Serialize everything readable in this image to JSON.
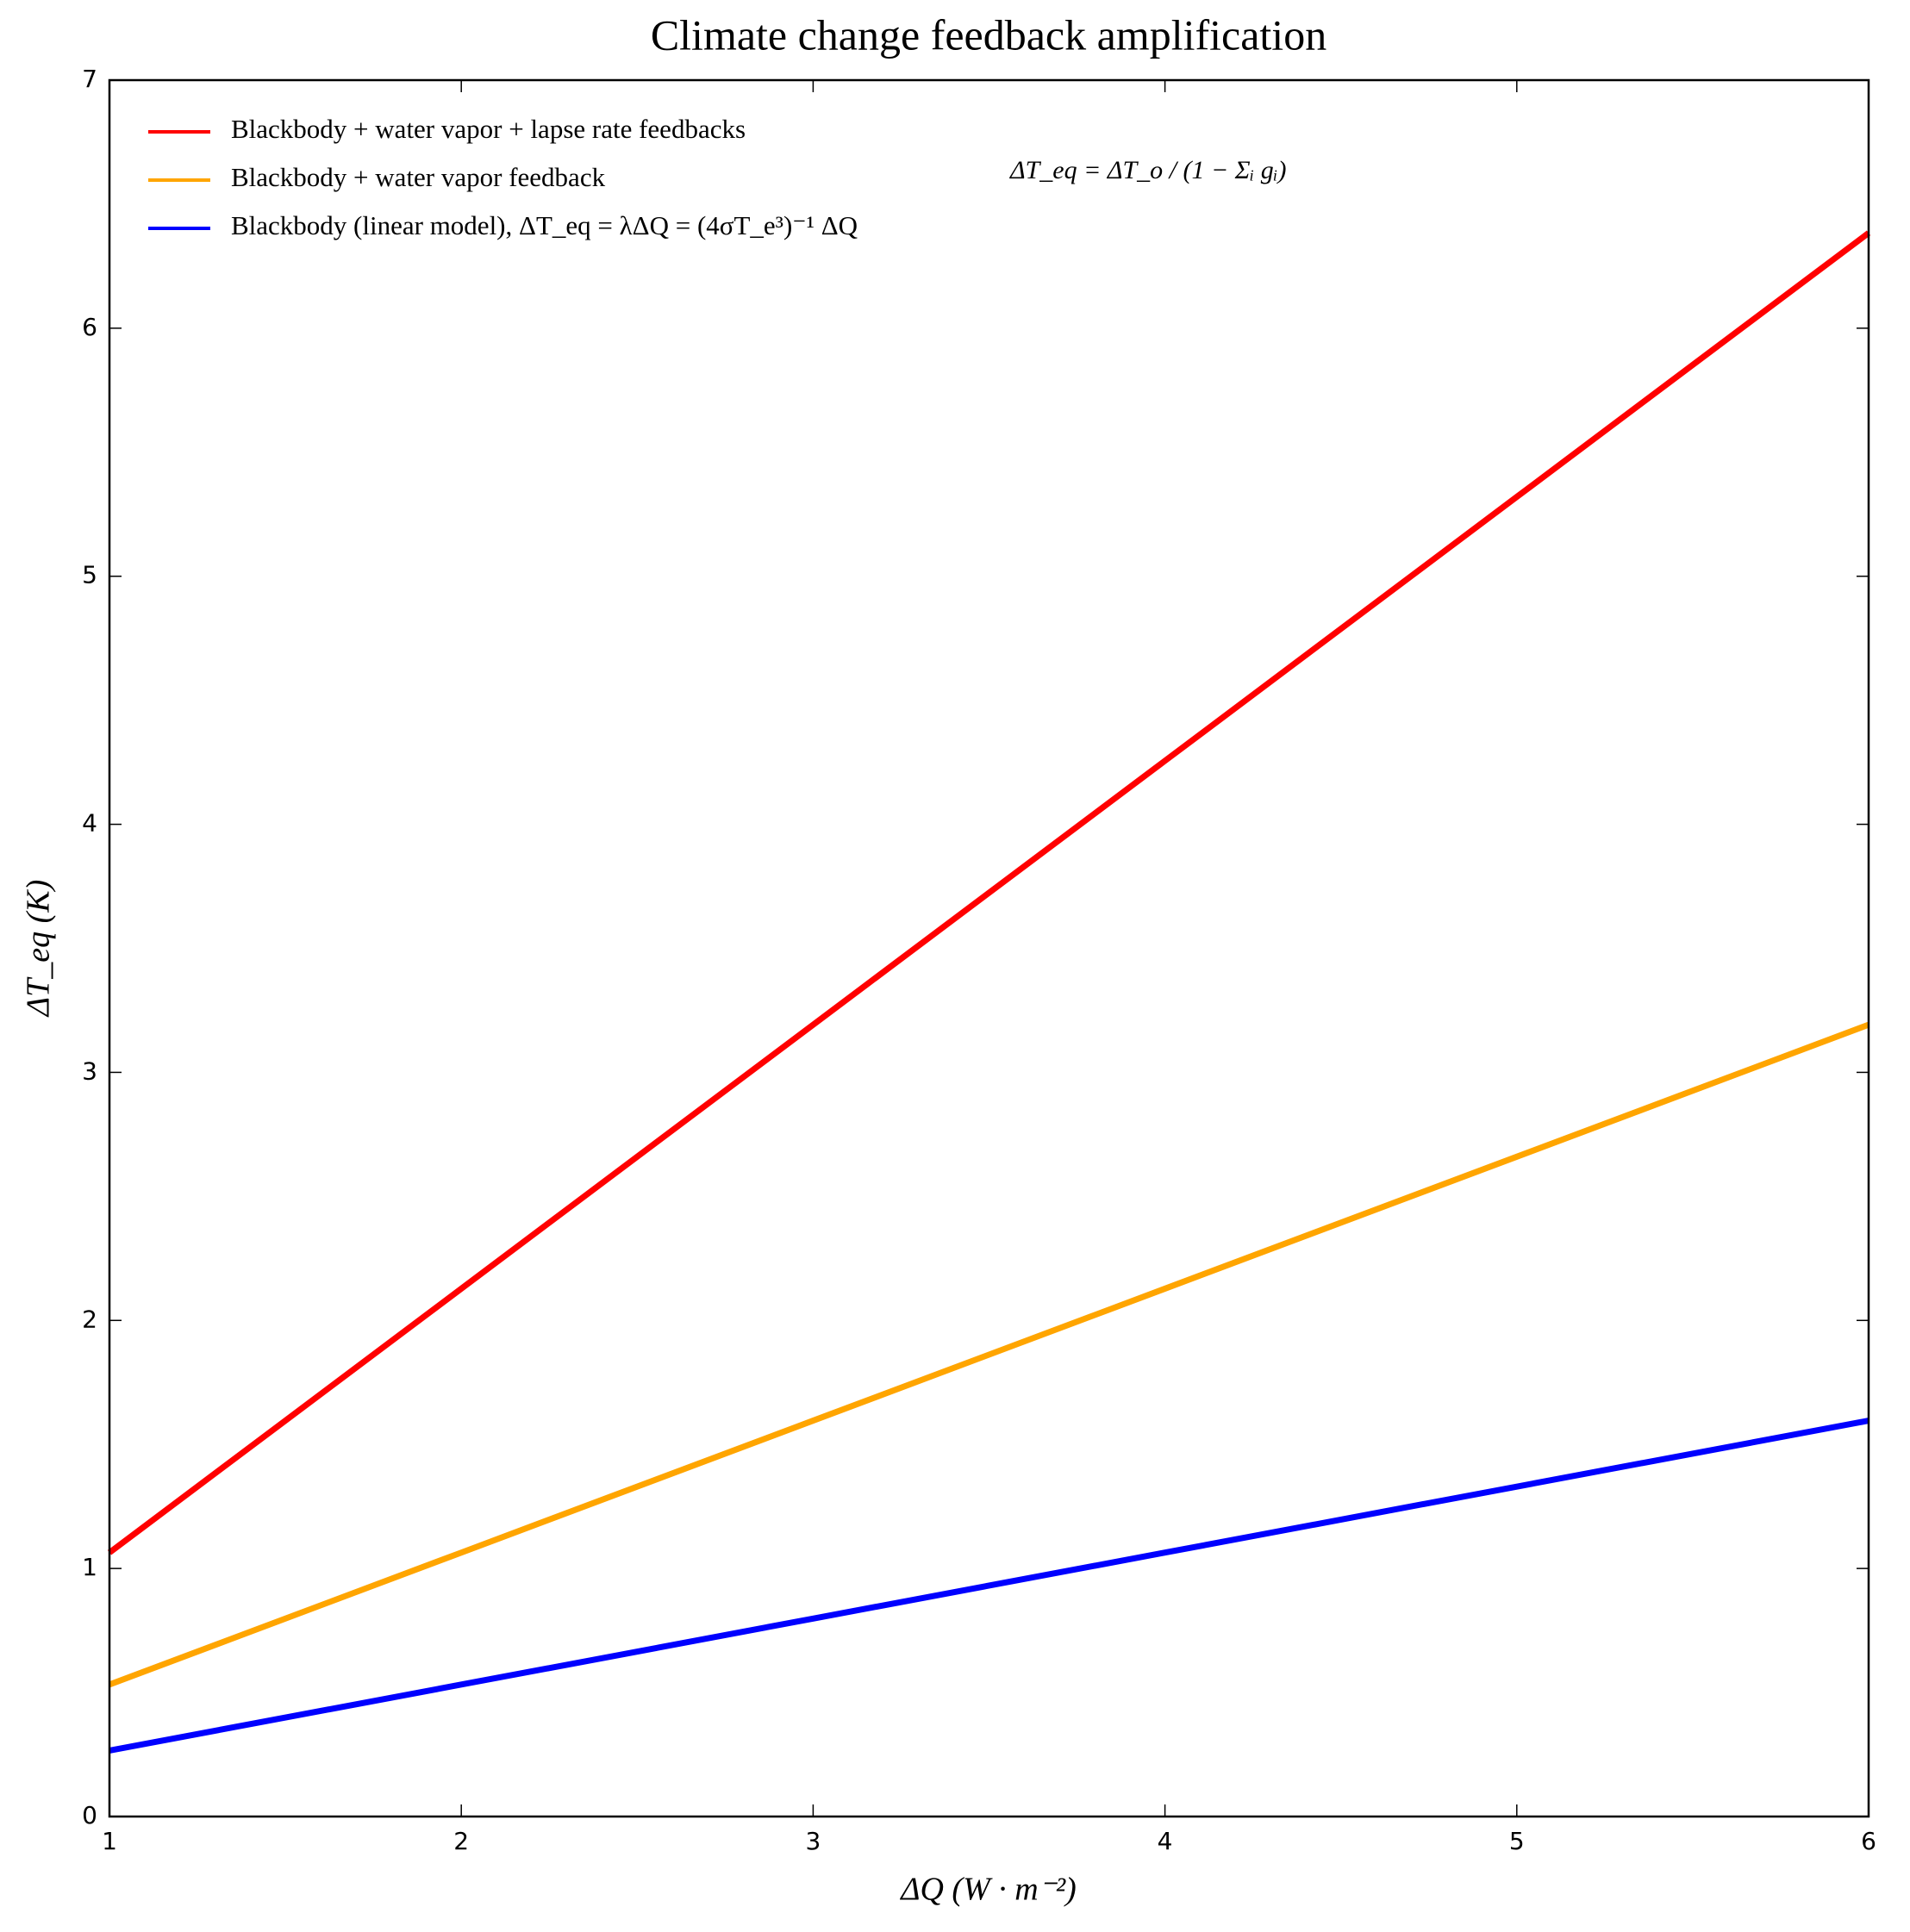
{
  "chart_data": {
    "type": "line",
    "title": "Climate change feedback amplification",
    "x_label": "ΔQ (W · m⁻²)",
    "y_label": "ΔT_eq (K)",
    "annotation": "ΔT_eq = ΔT_o / (1 − Σᵢ gᵢ)",
    "x": [
      1,
      2,
      3,
      4,
      5,
      6
    ],
    "series": [
      {
        "name": "Blackbody + water vapor + lapse rate feedbacks",
        "color": "#ff0000",
        "values": [
          1.064,
          2.128,
          3.192,
          4.256,
          5.32,
          6.384
        ]
      },
      {
        "name": "Blackbody + water vapor feedback",
        "color": "#ffa500",
        "values": [
          0.532,
          1.064,
          1.596,
          2.128,
          2.66,
          3.192
        ]
      },
      {
        "name": "Blackbody (linear model), ΔT_eq = λΔQ = (4σT_e³)⁻¹ ΔQ",
        "color": "#0000ff",
        "values": [
          0.266,
          0.532,
          0.798,
          1.064,
          1.33,
          1.596
        ]
      }
    ],
    "xlim": [
      1,
      6
    ],
    "xticks": [
      1,
      2,
      3,
      4,
      5,
      6
    ],
    "ylim": [
      0,
      7
    ],
    "yticks": [
      0,
      1,
      2,
      3,
      4,
      5,
      6,
      7
    ],
    "legend": "upper left",
    "grid": false
  }
}
